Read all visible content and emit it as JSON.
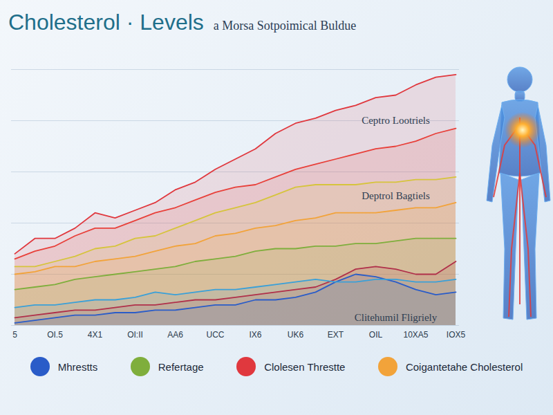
{
  "chart_data": {
    "type": "area",
    "title": "Cholesterol · Levels",
    "subtitle": "a Morsa Sotpoimical Buldue",
    "categories": [
      "5",
      null,
      "OI.5",
      null,
      "4X1",
      null,
      "OI:II",
      null,
      "AA6",
      null,
      "UCC",
      null,
      "IX6",
      null,
      "UK6",
      null,
      "EXT",
      null,
      "OIL",
      null,
      "10XA5",
      null,
      "IOX5"
    ],
    "series": [
      {
        "name": "Mhrestts",
        "color": "#2a5cc8",
        "values": [
          1,
          2,
          3,
          4,
          4,
          5,
          5,
          6,
          6,
          7,
          8,
          8,
          10,
          10,
          11,
          13,
          17,
          20,
          19,
          17,
          14,
          12,
          13
        ]
      },
      {
        "name": "Refertage",
        "color": "#7fae3c",
        "values": [
          14,
          15,
          16,
          18,
          19,
          20,
          21,
          22,
          23,
          25,
          26,
          27,
          29,
          30,
          30,
          31,
          31,
          32,
          32,
          33,
          34,
          34,
          34
        ]
      },
      {
        "name": "Clolesen Threstte",
        "color": "#e0383e",
        "values": [
          28,
          34,
          34,
          38,
          44,
          42,
          45,
          48,
          53,
          56,
          61,
          65,
          69,
          75,
          79,
          81,
          84,
          86,
          89,
          90,
          94,
          97,
          98
        ]
      },
      {
        "name": "Coigantetahe Cholesterol",
        "color": "#f2a33a",
        "values": [
          20,
          21,
          23,
          23,
          25,
          26,
          27,
          29,
          31,
          32,
          35,
          36,
          38,
          39,
          41,
          42,
          44,
          44,
          44,
          45,
          46,
          46,
          48
        ]
      },
      {
        "color": "#e8403a",
        "values": [
          26,
          29,
          31,
          35,
          38,
          38,
          41,
          44,
          46,
          49,
          52,
          54,
          55,
          58,
          61,
          63,
          65,
          67,
          69,
          70,
          72,
          75,
          77
        ]
      },
      {
        "color": "#d6c43c",
        "values": [
          23,
          23,
          25,
          27,
          30,
          31,
          34,
          35,
          38,
          41,
          44,
          46,
          48,
          51,
          54,
          55,
          55,
          55,
          56,
          56,
          57,
          57,
          58
        ]
      },
      {
        "color": "#3aa0d8",
        "values": [
          7,
          8,
          8,
          9,
          10,
          10,
          11,
          13,
          12,
          13,
          14,
          14,
          15,
          16,
          17,
          18,
          17,
          17,
          18,
          18,
          17,
          17,
          18
        ]
      },
      {
        "color": "#b0304a",
        "values": [
          3,
          4,
          5,
          6,
          6,
          7,
          8,
          8,
          9,
          10,
          10,
          11,
          12,
          13,
          14,
          15,
          18,
          22,
          23,
          22,
          20,
          20,
          25
        ]
      }
    ],
    "ylim": [
      0,
      100
    ],
    "yticks": [
      0,
      20,
      40,
      60,
      80,
      100
    ],
    "grid": true,
    "tick_labels": "x",
    "legend": "bottom",
    "annotations": [
      {
        "text": "Ceptro Lootriels",
        "x": 19,
        "y": 80
      },
      {
        "text": "Deptrol Bagtiels",
        "x": 19,
        "y": 50.5
      },
      {
        "text": "Clitehumil Fligriely",
        "x": 19,
        "y": 3
      }
    ]
  }
}
